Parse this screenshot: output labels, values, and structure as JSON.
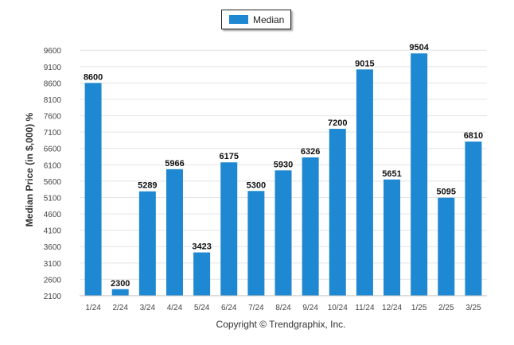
{
  "chart_data": {
    "type": "bar",
    "categories": [
      "1/24",
      "2/24",
      "3/24",
      "4/24",
      "5/24",
      "6/24",
      "7/24",
      "8/24",
      "9/24",
      "10/24",
      "11/24",
      "12/24",
      "1/25",
      "2/25",
      "3/25"
    ],
    "series": [
      {
        "name": "Median",
        "color": "#1e88d2",
        "values": [
          8600,
          2300,
          5289,
          5966,
          3423,
          6175,
          5300,
          5930,
          6326,
          7200,
          9015,
          5651,
          9504,
          5095,
          6810
        ]
      }
    ],
    "ylabel": "Median Price (in $,000) %",
    "xlabel": "",
    "ylim": [
      2100,
      9800
    ],
    "yticks": [
      2100,
      2600,
      3100,
      3600,
      4100,
      4600,
      5100,
      5600,
      6100,
      6600,
      7100,
      7600,
      8100,
      8600,
      9100,
      9600
    ],
    "grid": true,
    "legend_position": "top-center",
    "data_labels": true
  },
  "footer": {
    "copyright": "Copyright © Trendgraphix, Inc."
  }
}
